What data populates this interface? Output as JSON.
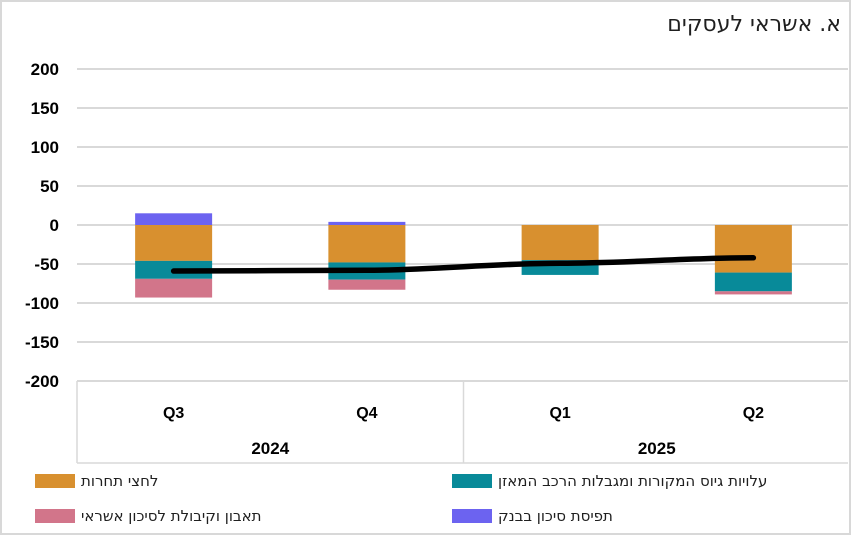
{
  "title": "א. אשראי לעסקים",
  "colors": {
    "competition_orange": "#D8902F",
    "funding_teal": "#088A99",
    "appetite_pink": "#D2758A",
    "risk_purple": "#6C63F0",
    "total_line": "#000000",
    "gridline": "#D9D9D9",
    "text": "#1F1F1F"
  },
  "chart_data": {
    "type": "bar",
    "stacked": true,
    "line_overlay": true,
    "categories": [
      "Q3",
      "Q4",
      "Q1",
      "Q2"
    ],
    "category_groups": [
      {
        "label": "2024",
        "categories": [
          "Q3",
          "Q4"
        ]
      },
      {
        "label": "2025",
        "categories": [
          "Q1",
          "Q2"
        ]
      }
    ],
    "series": [
      {
        "name": "לחצי תחרות",
        "color": "#D8902F",
        "values": [
          -46,
          -48,
          -45,
          -61
        ]
      },
      {
        "name": "עלויות גיוס המקורות ומגבלות הרכב המאזן",
        "color": "#088A99",
        "values": [
          -23,
          -22,
          -19,
          -24
        ]
      },
      {
        "name": "תאבון וקיבולת לסיכון אשראי",
        "color": "#D2758A",
        "values": [
          -24,
          -13,
          0,
          -4
        ]
      },
      {
        "name": "תפיסת סיכון בבנק",
        "color": "#6C63F0",
        "values": [
          15,
          4,
          0,
          0
        ]
      }
    ],
    "line_series": {
      "color": "#000000",
      "values": [
        -59,
        -58,
        -49,
        -42
      ]
    },
    "ylim": [
      -200,
      200
    ],
    "ytick_step": 50,
    "ytick_labels": [
      "200",
      "150",
      "100",
      "50",
      "0",
      "-50",
      "-100",
      "-150",
      "-200"
    ],
    "grid": true,
    "legend_position": "bottom"
  },
  "legend": {
    "items": [
      {
        "label": "לחצי תחרות",
        "color": "#D8902F"
      },
      {
        "label": "עלויות גיוס המקורות ומגבלות הרכב המאזן",
        "color": "#088A99"
      },
      {
        "label": "תאבון וקיבולת לסיכון אשראי",
        "color": "#D2758A"
      },
      {
        "label": "תפיסת סיכון בבנק",
        "color": "#6C63F0"
      }
    ]
  }
}
